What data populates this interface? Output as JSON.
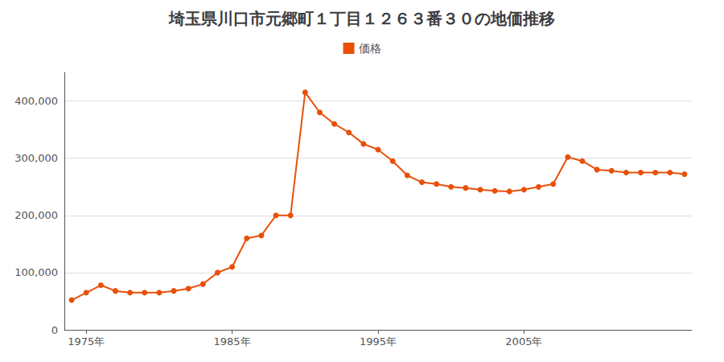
{
  "chart_data": {
    "type": "line",
    "title": "埼玉県川口市元郷町１丁目１２６３番３０の地価推移",
    "x": [
      1974,
      1975,
      1976,
      1977,
      1978,
      1979,
      1980,
      1981,
      1982,
      1983,
      1984,
      1985,
      1986,
      1987,
      1988,
      1989,
      1990,
      1991,
      1992,
      1993,
      1994,
      1995,
      1996,
      1997,
      1998,
      1999,
      2000,
      2001,
      2002,
      2003,
      2004,
      2005,
      2006,
      2007,
      2008,
      2009,
      2010,
      2011,
      2012,
      2013,
      2014,
      2015,
      2016
    ],
    "series": [
      {
        "name": "価格",
        "color": "#E8500A",
        "marker": "circle",
        "values": [
          52000,
          65000,
          78000,
          68000,
          65000,
          65000,
          65000,
          68000,
          72000,
          80000,
          100000,
          110000,
          160000,
          165000,
          200000,
          200000,
          415000,
          380000,
          360000,
          345000,
          325000,
          315000,
          295000,
          270000,
          258000,
          255000,
          250000,
          248000,
          245000,
          243000,
          242000,
          245000,
          250000,
          255000,
          302000,
          295000,
          280000,
          278000,
          275000,
          275000,
          275000,
          275000,
          272000
        ]
      }
    ],
    "xlim": [
      1973.5,
      2016.5
    ],
    "xticks": [
      {
        "value": 1975,
        "label": "1975年"
      },
      {
        "value": 1985,
        "label": "1985年"
      },
      {
        "value": 1995,
        "label": "1995年"
      },
      {
        "value": 2005,
        "label": "2005年"
      }
    ],
    "ylim": [
      0,
      450000
    ],
    "yticks": [
      0,
      {
        "value": 100000,
        "label": "100,000"
      },
      {
        "value": 200000,
        "label": "200,000"
      },
      {
        "value": 300000,
        "label": "300,000"
      },
      {
        "value": 400000,
        "label": "400,000"
      }
    ],
    "grid": true,
    "legend": "top"
  }
}
